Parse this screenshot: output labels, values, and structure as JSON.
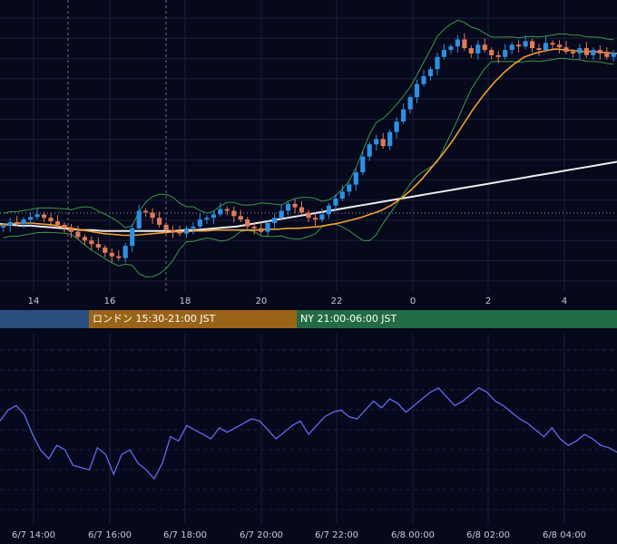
{
  "colors": {
    "background": "#06081c",
    "grid": "#1d2038",
    "candle_up": "#2f8fe0",
    "candle_down": "#e07a58",
    "bollinger": "#3a9a46",
    "ma_short": "#f0a030",
    "ma_long": "#eeeeee",
    "oscillator": "#5f6cf0",
    "session_tokyo": "#2a4f7f",
    "session_london": "#9a6418",
    "session_ny": "#236b44"
  },
  "hour_axis": {
    "labels": [
      "14",
      "16",
      "18",
      "20",
      "22",
      "0",
      "2",
      "4"
    ]
  },
  "sessions": [
    {
      "name": "tokyo",
      "label": ""
    },
    {
      "name": "london",
      "label": "ロンドン 15:30-21:00 JST"
    },
    {
      "name": "ny",
      "label": "NY 21:00-06:00 JST"
    }
  ],
  "date_axis": {
    "labels": [
      "6/7 14:00",
      "6/7 16:00",
      "6/7 18:00",
      "6/7 20:00",
      "6/7 22:00",
      "6/8 00:00",
      "6/8 02:00",
      "6/8 04:00"
    ]
  },
  "chart_data": [
    {
      "type": "candlestick",
      "title": "",
      "x_labels": [
        "14",
        "16",
        "18",
        "20",
        "22",
        "0",
        "2",
        "4"
      ],
      "series": [
        {
          "kind": "candles",
          "closes": [
            43,
            47,
            45,
            50,
            53,
            56,
            52,
            48,
            44,
            40,
            36,
            30,
            26,
            22,
            18,
            12,
            8,
            6,
            20,
            40,
            60,
            58,
            52,
            44,
            38,
            36,
            34,
            40,
            42,
            50,
            52,
            56,
            62,
            60,
            54,
            50,
            42,
            40,
            36,
            46,
            52,
            60,
            68,
            64,
            58,
            52,
            50,
            56,
            66,
            74,
            82,
            90,
            104,
            122,
            136,
            142,
            134,
            150,
            162,
            176,
            190,
            205,
            214,
            222,
            236,
            244,
            248,
            256,
            246,
            240,
            250,
            244,
            238,
            236,
            244,
            250,
            248,
            254,
            246,
            244,
            252,
            250,
            247,
            242,
            240,
            246,
            238,
            244,
            240,
            236,
            241
          ]
        },
        {
          "kind": "ma_short",
          "values": [
            44,
            45,
            46,
            46,
            45,
            44,
            42,
            40,
            38,
            36,
            34,
            33,
            32,
            32,
            33,
            34,
            35,
            36,
            36,
            37,
            37,
            38,
            38,
            38,
            38,
            38,
            39,
            39,
            40,
            40,
            41,
            42,
            44,
            46,
            49,
            52,
            56,
            60,
            66,
            74,
            84,
            96,
            110,
            124,
            140,
            158,
            176,
            192,
            206,
            218,
            228,
            236,
            240,
            243,
            245,
            244,
            243,
            242,
            242,
            241,
            240
          ]
        },
        {
          "kind": "ma_long",
          "values": [
            45,
            44,
            43,
            43,
            42,
            41,
            40,
            39,
            38,
            38,
            37,
            37,
            37,
            37,
            37,
            37,
            37,
            37,
            38,
            38,
            39,
            40,
            41,
            42,
            44,
            46,
            48,
            50,
            52,
            54,
            56,
            58,
            60,
            62,
            64,
            66,
            68,
            70,
            72,
            74,
            76,
            78,
            80,
            82,
            84,
            86,
            88,
            90,
            92,
            94,
            96,
            98,
            100,
            102,
            104,
            106,
            108,
            110,
            112,
            114,
            116
          ]
        }
      ]
    },
    {
      "type": "line",
      "title": "",
      "series": [
        {
          "name": "",
          "values": [
            52,
            62,
            66,
            58,
            40,
            26,
            18,
            30,
            26,
            12,
            10,
            8,
            28,
            22,
            4,
            22,
            26,
            14,
            8,
            0,
            14,
            38,
            34,
            48,
            44,
            40,
            36,
            46,
            42,
            46,
            50,
            54,
            52,
            44,
            36,
            42,
            48,
            52,
            40,
            48,
            56,
            60,
            62,
            56,
            54,
            62,
            70,
            64,
            72,
            68,
            60,
            66,
            72,
            78,
            82,
            74,
            66,
            70,
            76,
            82,
            78,
            70,
            66,
            60,
            54,
            50,
            44,
            38,
            46,
            36,
            30,
            34,
            40,
            36,
            30,
            28,
            24
          ]
        }
      ]
    }
  ]
}
